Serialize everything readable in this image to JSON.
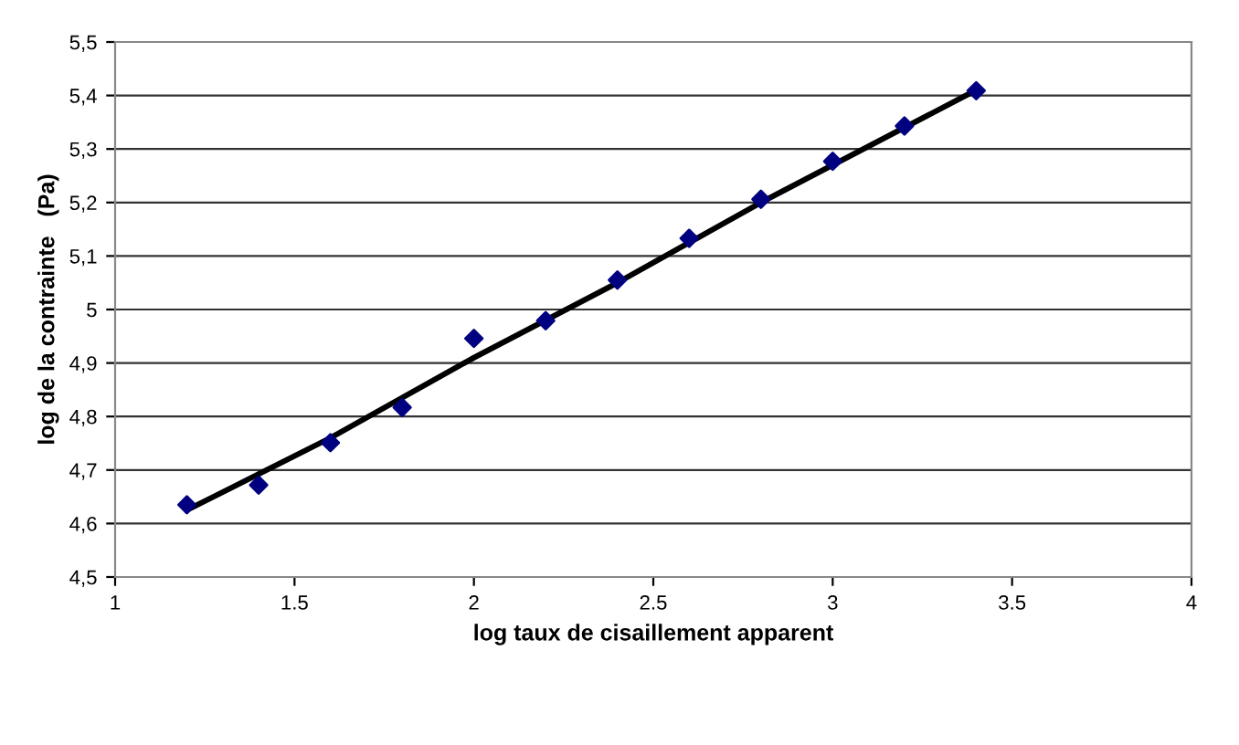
{
  "chart_data": {
    "type": "scatter",
    "xlabel": "log taux de cisaillement apparent",
    "ylabel": "log de la contrainte   (Pa)",
    "xlim": [
      1,
      4
    ],
    "xticks": [
      1,
      {
        "value": 1.5,
        "label": "1.5"
      },
      2,
      {
        "value": 2.5,
        "label": "2.5"
      },
      3,
      {
        "value": 3.5,
        "label": "3.5"
      },
      4
    ],
    "ylim": [
      4.5,
      5.5
    ],
    "yticks": [
      {
        "value": 4.5,
        "label": "4,5"
      },
      {
        "value": 4.6,
        "label": "4,6"
      },
      {
        "value": 4.7,
        "label": "4,7"
      },
      {
        "value": 4.8,
        "label": "4,8"
      },
      {
        "value": 4.9,
        "label": "4,9"
      },
      {
        "value": 5,
        "label": "5"
      },
      {
        "value": 5.1,
        "label": "5,1"
      },
      {
        "value": 5.2,
        "label": "5,2"
      },
      {
        "value": 5.3,
        "label": "5,3"
      },
      {
        "value": 5.4,
        "label": "5,4"
      },
      {
        "value": 5.5,
        "label": "5,5"
      }
    ],
    "grid": "y",
    "legend": false,
    "series": [
      {
        "color": "#000080",
        "marker": "diamond",
        "x": [
          1.2,
          1.4,
          1.6,
          1.8,
          2.0,
          2.2,
          2.4,
          2.6,
          2.8,
          3.0,
          3.2,
          3.4
        ],
        "values": [
          4.635,
          4.672,
          4.751,
          4.817,
          4.946,
          4.979,
          5.055,
          5.133,
          5.206,
          5.277,
          5.343,
          5.409
        ]
      },
      {
        "type": "line",
        "color": "#000000",
        "marker": "none",
        "line_style": "solid",
        "x": [
          1.2,
          1.6,
          2.0,
          2.4,
          2.8,
          3.0,
          3.4
        ],
        "values": [
          4.625,
          4.76,
          4.91,
          5.05,
          5.2,
          5.27,
          5.41
        ]
      }
    ]
  }
}
